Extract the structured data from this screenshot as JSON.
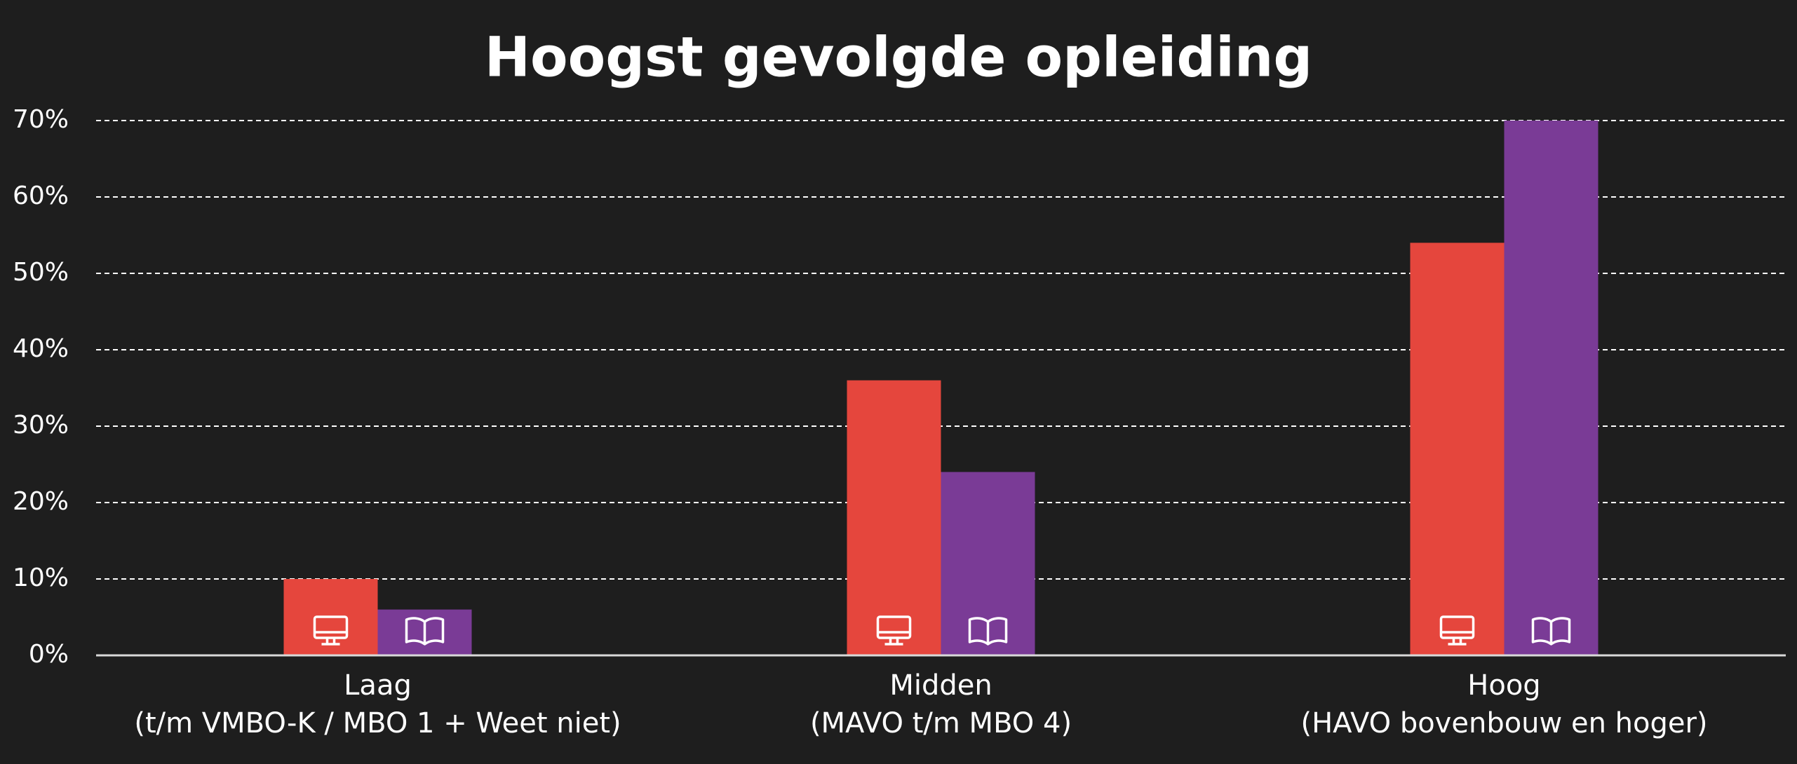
{
  "chart_data": {
    "type": "bar",
    "title": "Hoogst gevolgde opleiding",
    "categories": [
      "Laag\n(t/m VMBO-K / MBO 1 + Weet niet)",
      "Midden\n(MAVO t/m MBO 4)",
      "Hoog\n(HAVO bovenbouw en hoger)"
    ],
    "series": [
      {
        "color": "#e5463d",
        "values": [
          10,
          36,
          54
        ]
      },
      {
        "color": "#7a3b96",
        "values": [
          6,
          24,
          70
        ]
      }
    ],
    "ylim": [
      0,
      70
    ],
    "yticks": [
      {
        "value": 0,
        "label": "0%"
      },
      {
        "value": 10,
        "label": "10%"
      },
      {
        "value": 20,
        "label": "20%"
      },
      {
        "value": 30,
        "label": "30%"
      },
      {
        "value": 40,
        "label": "40%"
      },
      {
        "value": 50,
        "label": "50%"
      },
      {
        "value": 60,
        "label": "60%"
      },
      {
        "value": 70,
        "label": "70%"
      }
    ],
    "grid": true
  }
}
